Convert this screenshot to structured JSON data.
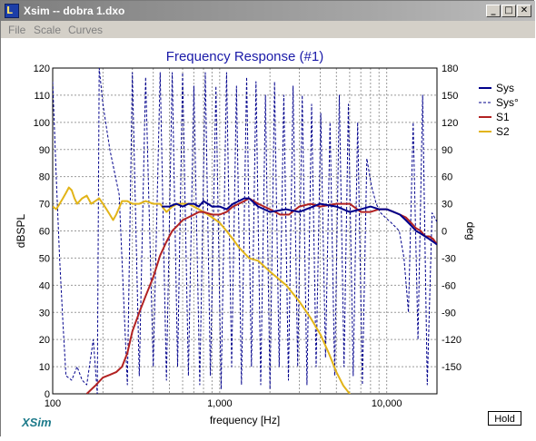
{
  "window": {
    "title": "Xsim -- dobra 1.dxo",
    "icon_name": "xsim-app-icon",
    "min_label": "_",
    "max_label": "□",
    "close_label": "✕"
  },
  "menu": [
    "File",
    "Scale",
    "Curves"
  ],
  "brand": "XSim",
  "hold_label": "Hold",
  "chart_data": {
    "type": "line",
    "title": "Frequency Response (#1)",
    "xlabel": "frequency [Hz]",
    "ylabel": "dBSPL",
    "y2label": "deg",
    "x_scale": "log",
    "xlim": [
      100,
      20000
    ],
    "ylim": [
      0,
      120
    ],
    "y2lim": [
      -180,
      180
    ],
    "x_tick_labels": [
      "100",
      "1,000",
      "10,000"
    ],
    "y_ticks": [
      0,
      10,
      20,
      30,
      40,
      50,
      60,
      70,
      80,
      90,
      100,
      110,
      120
    ],
    "y2_ticks": [
      -150,
      -120,
      -90,
      -60,
      -30,
      0,
      30,
      60,
      90,
      120,
      150,
      180
    ],
    "grid": true,
    "legend_position": "right",
    "series": [
      {
        "name": "Sys",
        "color": "#00008b",
        "style": "solid",
        "axis": "left",
        "x": [
          450,
          500,
          550,
          600,
          650,
          700,
          750,
          800,
          850,
          900,
          1000,
          1100,
          1200,
          1300,
          1400,
          1500,
          1700,
          2000,
          2500,
          3000,
          4000,
          5000,
          6000,
          7000,
          8000,
          9000,
          10000,
          11000,
          12000,
          13000,
          14000,
          15000,
          16000,
          17000,
          18000,
          19000,
          20000
        ],
        "y": [
          69,
          69,
          70,
          69,
          70,
          70,
          69,
          71,
          70,
          69,
          69,
          68,
          70,
          71,
          72,
          72,
          69,
          67,
          68,
          67,
          70,
          69,
          67,
          68,
          69,
          68,
          68,
          67,
          66,
          64,
          62,
          60,
          59,
          58,
          57,
          56,
          55
        ]
      },
      {
        "name": "Sys°",
        "color": "#00008b",
        "style": "dashed",
        "axis": "right",
        "x": [
          100,
          105,
          110,
          115,
          120,
          130,
          140,
          150,
          160,
          175,
          185,
          190,
          200,
          220,
          250,
          280,
          300,
          330,
          360,
          400,
          440,
          480,
          520,
          560,
          600,
          650,
          700,
          760,
          820,
          880,
          950,
          1020,
          1100,
          1180,
          1260,
          1350,
          1450,
          1550,
          1650,
          1760,
          1880,
          2000,
          2130,
          2270,
          2420,
          2580,
          2750,
          2930,
          3120,
          3330,
          3550,
          3780,
          4030,
          4300,
          4580,
          4880,
          5200,
          5550,
          5900,
          6300,
          6700,
          7150,
          7600,
          8100,
          8650,
          9200,
          9800,
          10500,
          11200,
          11900,
          12700,
          13500,
          14400,
          15400,
          16400,
          17500,
          18700,
          20000
        ],
        "y": [
          165,
          60,
          -30,
          -100,
          -160,
          -165,
          -150,
          -165,
          -170,
          -120,
          -180,
          180,
          140,
          90,
          40,
          -170,
          175,
          -160,
          170,
          -150,
          175,
          -165,
          175,
          -150,
          175,
          -160,
          160,
          -170,
          175,
          -160,
          160,
          -175,
          175,
          -150,
          160,
          -170,
          170,
          -150,
          165,
          -170,
          150,
          -175,
          165,
          -150,
          150,
          -165,
          160,
          -150,
          150,
          -170,
          140,
          -150,
          130,
          -140,
          120,
          -160,
          150,
          -150,
          140,
          -160,
          120,
          -170,
          80,
          50,
          30,
          20,
          15,
          10,
          5,
          0,
          -30,
          -90,
          120,
          -120,
          150,
          -170,
          20,
          10
        ]
      },
      {
        "name": "S1",
        "color": "#b22222",
        "style": "solid",
        "axis": "left",
        "x": [
          160,
          180,
          200,
          220,
          240,
          260,
          280,
          300,
          330,
          360,
          400,
          440,
          480,
          520,
          560,
          600,
          650,
          700,
          750,
          800,
          900,
          1000,
          1100,
          1200,
          1300,
          1400,
          1500,
          1700,
          2000,
          2300,
          2600,
          3000,
          3500,
          4000,
          5000,
          6000,
          7000,
          8000,
          9000,
          10000,
          11000,
          12000,
          13000,
          14000,
          15000,
          16000,
          17000,
          18000,
          19000,
          20000
        ],
        "y": [
          0,
          3,
          6,
          7,
          8,
          10,
          15,
          23,
          30,
          36,
          43,
          51,
          56,
          60,
          62,
          64,
          65,
          66,
          67,
          67,
          66,
          66,
          67,
          69,
          70,
          71,
          72,
          70,
          68,
          66,
          66,
          69,
          70,
          69,
          70,
          70,
          67,
          67,
          68,
          68,
          67,
          66,
          65,
          63,
          61,
          60,
          58,
          58,
          57,
          55
        ]
      },
      {
        "name": "S2",
        "color": "#e2b418",
        "style": "solid",
        "axis": "left",
        "x": [
          100,
          105,
          110,
          115,
          120,
          125,
          130,
          135,
          140,
          150,
          160,
          170,
          180,
          190,
          200,
          210,
          220,
          230,
          240,
          260,
          280,
          300,
          330,
          360,
          400,
          440,
          480,
          520,
          560,
          600,
          650,
          700,
          750,
          800,
          850,
          900,
          1000,
          1100,
          1200,
          1300,
          1500,
          1700,
          2000,
          2500,
          3000,
          3500,
          4000,
          4500,
          5000,
          5500,
          6000,
          6500,
          7000
        ],
        "y": [
          69,
          68,
          70,
          72,
          74,
          76,
          75,
          72,
          70,
          72,
          73,
          70,
          71,
          72,
          70,
          68,
          66,
          64,
          66,
          71,
          71,
          70,
          70,
          71,
          70,
          70,
          67,
          69,
          70,
          70,
          70,
          69,
          68,
          67,
          66,
          65,
          63,
          60,
          57,
          54,
          50,
          49,
          45,
          40,
          34,
          28,
          22,
          15,
          8,
          3,
          0,
          -5,
          -8
        ]
      }
    ]
  }
}
